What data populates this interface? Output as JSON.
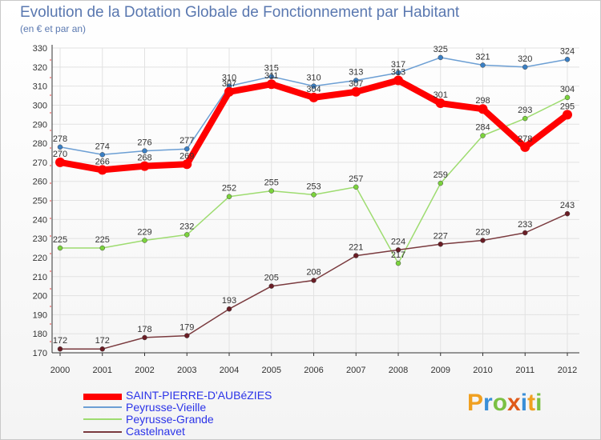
{
  "chart_data": {
    "type": "line",
    "title": "Evolution de la Dotation Globale de Fonctionnement par Habitant",
    "subtitle": "(en € et par an)",
    "xlabel": "",
    "ylabel": "",
    "ylim": [
      170,
      330
    ],
    "yticks": [
      170,
      180,
      190,
      200,
      210,
      220,
      230,
      240,
      250,
      260,
      270,
      280,
      290,
      300,
      310,
      320,
      330
    ],
    "categories": [
      "2000",
      "2001",
      "2002",
      "2003",
      "2004",
      "2005",
      "2006",
      "2007",
      "2008",
      "2009",
      "2010",
      "2011",
      "2012"
    ],
    "series": [
      {
        "name": "Peyrusse-Vieille",
        "color": "#6c9fd4",
        "marker": "#3a7fc4",
        "values": [
          278,
          274,
          276,
          277,
          310,
          315,
          310,
          313,
          317,
          325,
          321,
          320,
          324
        ]
      },
      {
        "name": "Peyrusse-Grande",
        "color": "#9edc70",
        "marker": "#7bd33c",
        "values": [
          225,
          225,
          229,
          232,
          252,
          255,
          253,
          257,
          217,
          259,
          284,
          293,
          304
        ]
      },
      {
        "name": "Castelnavet",
        "color": "#7a3a3e",
        "marker": "#6a1d25",
        "values": [
          172,
          172,
          178,
          179,
          193,
          205,
          208,
          221,
          224,
          227,
          229,
          233,
          243
        ]
      },
      {
        "name": "SAINT-PIERRE-D'AUBéZIES",
        "color": "#ff0000",
        "marker": "#ff0000",
        "values": [
          270,
          266,
          268,
          269,
          307,
          311,
          304,
          307,
          313,
          301,
          298,
          278,
          295
        ]
      }
    ],
    "legend": [
      "SAINT-PIERRE-D'AUBéZIES",
      "Peyrusse-Vieille",
      "Peyrusse-Grande",
      "Castelnavet"
    ],
    "legend_position": "bottom-left"
  },
  "logo": {
    "letters": [
      "P",
      "r",
      "o",
      "x",
      "i",
      "t",
      "i"
    ],
    "colors": [
      "#f0a020",
      "#3a8fd8",
      "#7bc043",
      "#e05a1a",
      "#3a8fd8",
      "#f0a020",
      "#7bc043"
    ]
  }
}
